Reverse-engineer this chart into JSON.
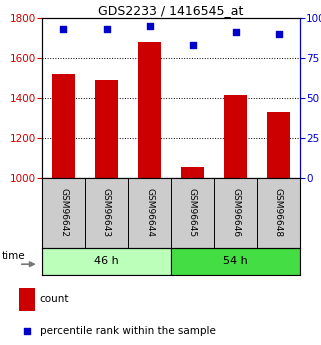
{
  "title": "GDS2233 / 1416545_at",
  "categories": [
    "GSM96642",
    "GSM96643",
    "GSM96644",
    "GSM96645",
    "GSM96646",
    "GSM96648"
  ],
  "bar_values": [
    1520,
    1490,
    1680,
    1055,
    1415,
    1330
  ],
  "percentile_values": [
    93,
    93,
    95,
    83,
    91,
    90
  ],
  "bar_color": "#cc0000",
  "dot_color": "#0000cc",
  "ylim_left": [
    1000,
    1800
  ],
  "ylim_right": [
    0,
    100
  ],
  "yticks_left": [
    1000,
    1200,
    1400,
    1600,
    1800
  ],
  "yticks_right": [
    0,
    25,
    50,
    75,
    100
  ],
  "groups": [
    {
      "label": "46 h",
      "color": "#aaffaa",
      "light_color": "#ccffcc"
    },
    {
      "label": "54 h",
      "color": "#33cc33",
      "light_color": "#66ff66"
    }
  ],
  "time_label": "time",
  "legend_count_label": "count",
  "legend_percentile_label": "percentile rank within the sample",
  "bar_width": 0.55,
  "bg_color": "#ffffff",
  "left_axis_color": "#cc0000",
  "right_axis_color": "#0000cc",
  "xlabel_area_color": "#cccccc"
}
